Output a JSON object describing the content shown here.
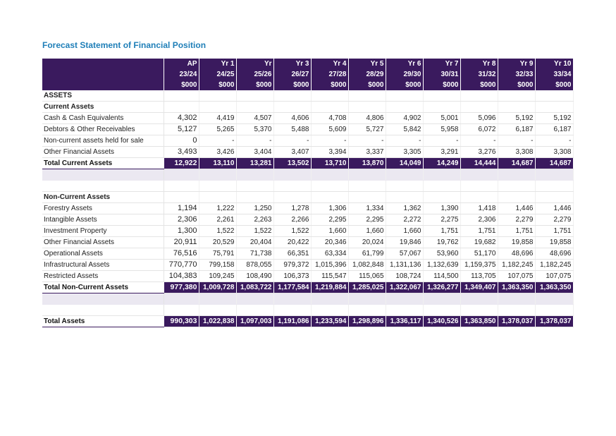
{
  "title": "Forecast Statement of Financial Position",
  "colors": {
    "header_bg": "#3a1a5e",
    "title": "#1f7fb8",
    "band": "#ebe8f1"
  },
  "header": {
    "cols": [
      {
        "l1": "AP",
        "l2": "23/24",
        "l3": "$000"
      },
      {
        "l1": "Yr 1",
        "l2": "24/25",
        "l3": "$000"
      },
      {
        "l1": "Yr",
        "l2": "25/26",
        "l3": "$000"
      },
      {
        "l1": "Yr 3",
        "l2": "26/27",
        "l3": "$000"
      },
      {
        "l1": "Yr 4",
        "l2": "27/28",
        "l3": "$000"
      },
      {
        "l1": "Yr 5",
        "l2": "28/29",
        "l3": "$000"
      },
      {
        "l1": "Yr 6",
        "l2": "29/30",
        "l3": "$000"
      },
      {
        "l1": "Yr 7",
        "l2": "30/31",
        "l3": "$000"
      },
      {
        "l1": "Yr 8",
        "l2": "31/32",
        "l3": "$000"
      },
      {
        "l1": "Yr 9",
        "l2": "32/33",
        "l3": "$000"
      },
      {
        "l1": "Yr 10",
        "l2": "33/34",
        "l3": "$000"
      }
    ]
  },
  "rows": [
    {
      "type": "section",
      "label": "ASSETS",
      "values": [
        "",
        "",
        "",
        "",
        "",
        "",
        "",
        "",
        "",
        "",
        ""
      ]
    },
    {
      "type": "group",
      "label": "Current Assets",
      "values": [
        "",
        "",
        "",
        "",
        "",
        "",
        "",
        "",
        "",
        "",
        ""
      ]
    },
    {
      "type": "item",
      "label": "Cash & Cash Equivalents",
      "values": [
        "4,302",
        "4,419",
        "4,507",
        "4,606",
        "4,708",
        "4,806",
        "4,902",
        "5,001",
        "5,096",
        "5,192",
        "5,192"
      ]
    },
    {
      "type": "item",
      "label": "Debtors & Other Receivables",
      "values": [
        "5,127",
        "5,265",
        "5,370",
        "5,488",
        "5,609",
        "5,727",
        "5,842",
        "5,958",
        "6,072",
        "6,187",
        "6,187"
      ]
    },
    {
      "type": "item",
      "label": "Non-current assets held for sale",
      "values": [
        "0",
        "-",
        "-",
        "-",
        "-",
        "-",
        "-",
        "-",
        "-",
        "-",
        "-"
      ]
    },
    {
      "type": "item",
      "label": "Other Financial Assets",
      "values": [
        "3,493",
        "3,426",
        "3,404",
        "3,407",
        "3,394",
        "3,337",
        "3,305",
        "3,291",
        "3,276",
        "3,308",
        "3,308"
      ]
    },
    {
      "type": "total",
      "label": "Total Current Assets",
      "values": [
        "12,922",
        "13,110",
        "13,281",
        "13,502",
        "13,710",
        "13,870",
        "14,049",
        "14,249",
        "14,444",
        "14,687",
        "14,687"
      ]
    },
    {
      "type": "band",
      "label": "",
      "values": [
        "",
        "",
        "",
        "",
        "",
        "",
        "",
        "",
        "",
        "",
        ""
      ]
    },
    {
      "type": "blank",
      "label": "",
      "values": [
        "",
        "",
        "",
        "",
        "",
        "",
        "",
        "",
        "",
        "",
        ""
      ]
    },
    {
      "type": "group",
      "label": "Non-Current Assets",
      "values": [
        "",
        "",
        "",
        "",
        "",
        "",
        "",
        "",
        "",
        "",
        ""
      ]
    },
    {
      "type": "item",
      "label": "Forestry Assets",
      "values": [
        "1,194",
        "1,222",
        "1,250",
        "1,278",
        "1,306",
        "1,334",
        "1,362",
        "1,390",
        "1,418",
        "1,446",
        "1,446"
      ]
    },
    {
      "type": "item",
      "label": "Intangible Assets",
      "values": [
        "2,306",
        "2,261",
        "2,263",
        "2,266",
        "2,295",
        "2,295",
        "2,272",
        "2,275",
        "2,306",
        "2,279",
        "2,279"
      ]
    },
    {
      "type": "item",
      "label": "Investment Property",
      "values": [
        "1,300",
        "1,522",
        "1,522",
        "1,522",
        "1,660",
        "1,660",
        "1,660",
        "1,751",
        "1,751",
        "1,751",
        "1,751"
      ]
    },
    {
      "type": "item",
      "label": "Other Financial Assets",
      "values": [
        "20,911",
        "20,529",
        "20,404",
        "20,422",
        "20,346",
        "20,024",
        "19,846",
        "19,762",
        "19,682",
        "19,858",
        "19,858"
      ]
    },
    {
      "type": "item",
      "label": "Operational Assets",
      "values": [
        "76,516",
        "75,791",
        "71,738",
        "66,351",
        "63,334",
        "61,799",
        "57,067",
        "53,960",
        "51,170",
        "48,696",
        "48,696"
      ]
    },
    {
      "type": "item",
      "label": "Infrastructural Assets",
      "values": [
        "770,770",
        "799,158",
        "878,055",
        "979,372",
        "1,015,396",
        "1,082,848",
        "1,131,136",
        "1,132,639",
        "1,159,375",
        "1,182,245",
        "1,182,245"
      ]
    },
    {
      "type": "item",
      "label": "Restricted Assets",
      "values": [
        "104,383",
        "109,245",
        "108,490",
        "106,373",
        "115,547",
        "115,065",
        "108,724",
        "114,500",
        "113,705",
        "107,075",
        "107,075"
      ]
    },
    {
      "type": "total",
      "label": "Total Non-Current Assets",
      "values": [
        "977,380",
        "1,009,728",
        "1,083,722",
        "1,177,584",
        "1,219,884",
        "1,285,025",
        "1,322,067",
        "1,326,277",
        "1,349,407",
        "1,363,350",
        "1,363,350"
      ]
    },
    {
      "type": "band",
      "label": "",
      "values": [
        "",
        "",
        "",
        "",
        "",
        "",
        "",
        "",
        "",
        "",
        ""
      ]
    },
    {
      "type": "blank",
      "label": "",
      "values": [
        "",
        "",
        "",
        "",
        "",
        "",
        "",
        "",
        "",
        "",
        ""
      ]
    },
    {
      "type": "total",
      "label": "Total Assets",
      "values": [
        "990,303",
        "1,022,838",
        "1,097,003",
        "1,191,086",
        "1,233,594",
        "1,298,896",
        "1,336,117",
        "1,340,526",
        "1,363,850",
        "1,378,037",
        "1,378,037"
      ]
    }
  ]
}
